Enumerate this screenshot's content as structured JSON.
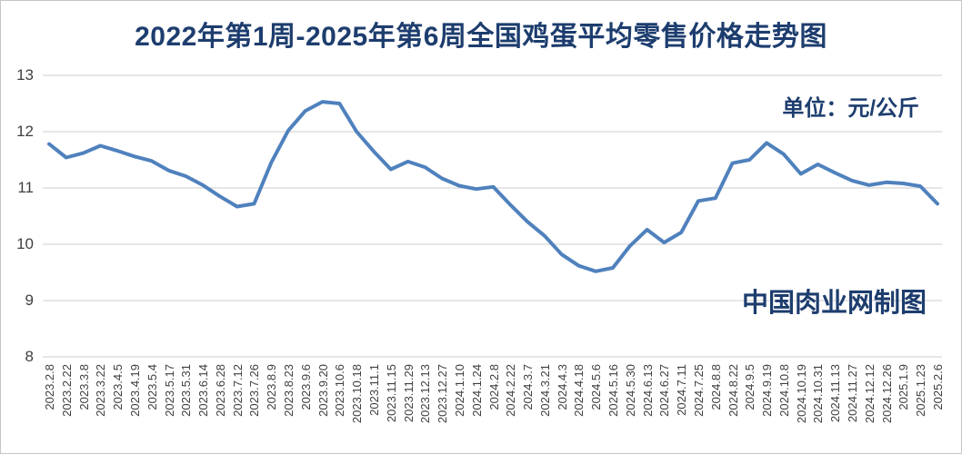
{
  "chart_data": {
    "type": "line",
    "title": "2022年第1周-2025年第6周全国鸡蛋平均零售价格走势图",
    "unit_label": "单位：元/公斤",
    "credit": "中国肉业网制图",
    "unit": "元/公斤",
    "legend": "none",
    "grid": "horizontal",
    "ylim": [
      8,
      13
    ],
    "yticks": [
      8,
      9,
      10,
      11,
      12,
      13
    ],
    "line_color": "#4F81BD",
    "grid_color": "#d8d8d8",
    "title_color": "#1d3d6e",
    "tick_color": "#3f3f3f",
    "categories": [
      "2023.2.8",
      "2023.2.22",
      "2023.3.8",
      "2023.3.22",
      "2023.4.5",
      "2023.4.19",
      "2023.5.4",
      "2023.5.17",
      "2023.5.31",
      "2023.6.14",
      "2023.6.28",
      "2023.7.12",
      "2023.7.26",
      "2023.8.9",
      "2023.8.23",
      "2023.9.6",
      "2023.9.20",
      "2023.10.6",
      "2023.10.18",
      "2023.11.1",
      "2023.11.15",
      "2023.11.29",
      "2023.12.13",
      "2023.12.27",
      "2024.1.10",
      "2024.1.24",
      "2024.2.8",
      "2024.2.22",
      "2024.3.7",
      "2024.3.21",
      "2024.4.3",
      "2024.4.18",
      "2024.5.6",
      "2024.5.16",
      "2024.5.30",
      "2024.6.13",
      "2024.6.27",
      "2024.7.11",
      "2024.7.25",
      "2024.8.8",
      "2024.8.22",
      "2024.9.5",
      "2024.9.19",
      "2024.10.8",
      "2024.10.19",
      "2024.10.31",
      "2024.11.13",
      "2024.11.27",
      "2024.12.12",
      "2024.12.26",
      "2025.1.9",
      "2025.1.23",
      "2025.2.6"
    ],
    "values": [
      11.78,
      11.54,
      11.62,
      11.75,
      11.66,
      11.56,
      11.48,
      11.31,
      11.21,
      11.05,
      10.85,
      10.67,
      10.72,
      11.45,
      12.02,
      12.37,
      12.53,
      12.5,
      12.0,
      11.65,
      11.33,
      11.47,
      11.37,
      11.17,
      11.04,
      10.98,
      11.02,
      10.7,
      10.4,
      10.15,
      9.82,
      9.62,
      9.52,
      9.58,
      9.97,
      10.26,
      10.03,
      10.21,
      10.77,
      10.82,
      11.44,
      11.5,
      11.8,
      11.6,
      11.25,
      11.42,
      11.27,
      11.13,
      11.05,
      11.1,
      11.08,
      11.03,
      10.72
    ]
  }
}
